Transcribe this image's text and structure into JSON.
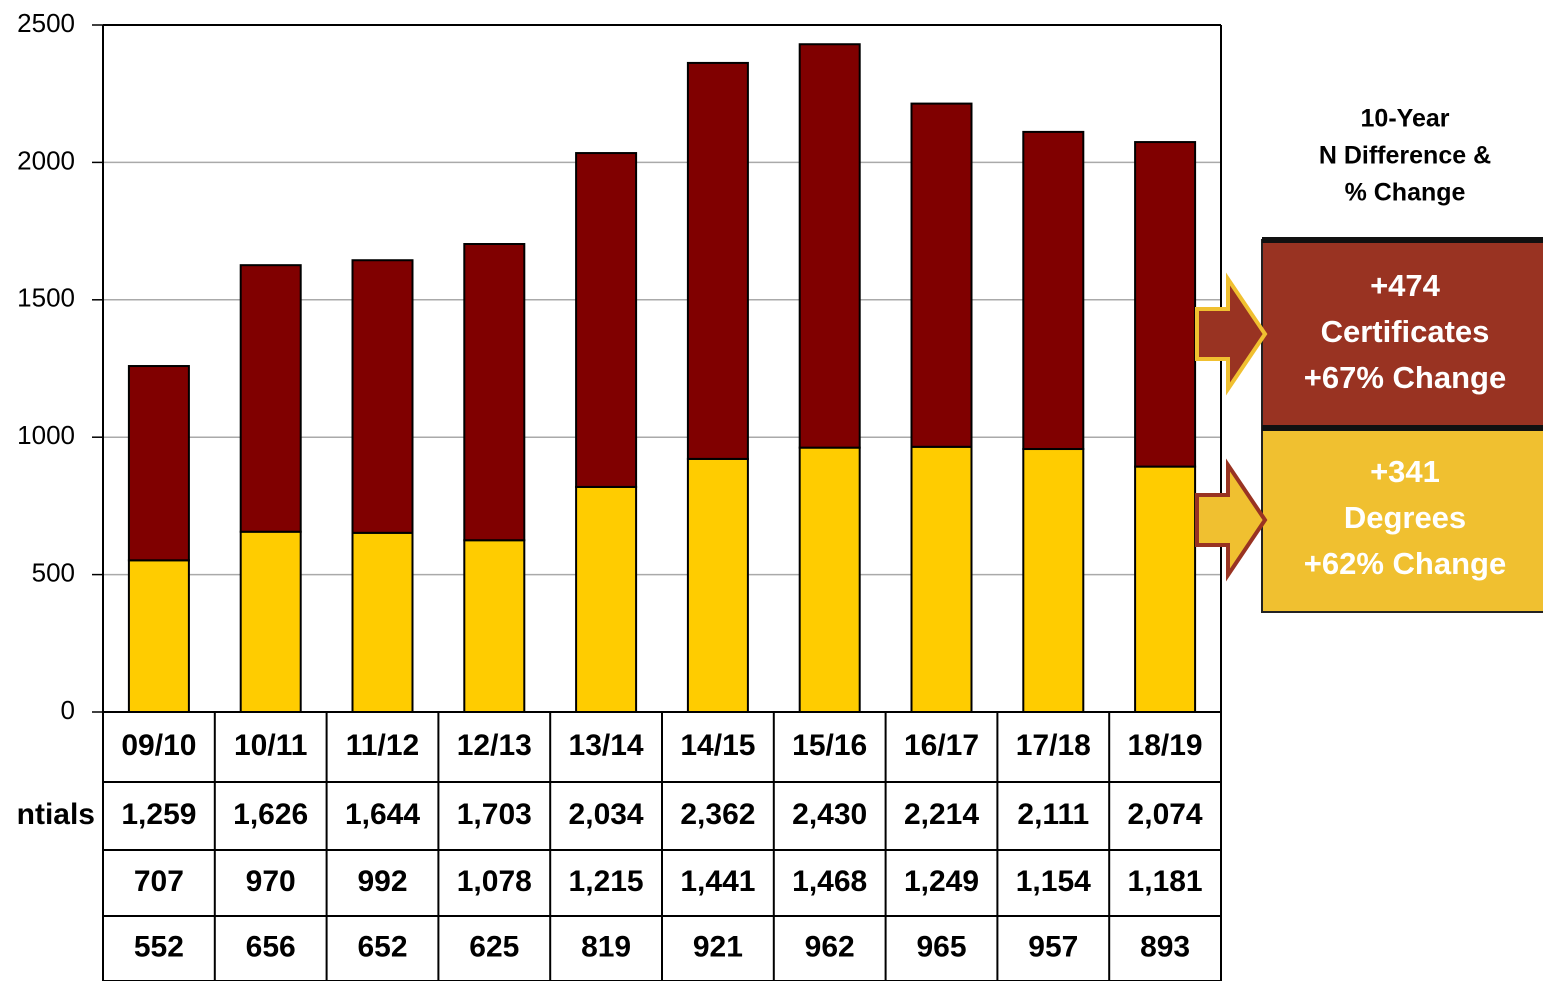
{
  "chart_data": {
    "type": "stacked_bar",
    "categories": [
      "09/10",
      "10/11",
      "11/12",
      "12/13",
      "13/14",
      "14/15",
      "15/16",
      "16/17",
      "17/18",
      "18/19"
    ],
    "series": [
      {
        "name": "Degrees",
        "color": "#ffcc00",
        "values": [
          552,
          656,
          652,
          625,
          819,
          921,
          962,
          965,
          957,
          893
        ]
      },
      {
        "name": "Certificates",
        "color": "#800000",
        "values": [
          707,
          970,
          992,
          1078,
          1215,
          1441,
          1468,
          1249,
          1154,
          1181
        ],
        "value_labels": [
          "707",
          "970",
          "992",
          "1,078",
          "1,215",
          "1,441",
          "1,468",
          "1,249",
          "1,154",
          "1,181"
        ]
      }
    ],
    "totals": {
      "label": "ntials",
      "values": [
        1259,
        1626,
        1644,
        1703,
        2034,
        2362,
        2430,
        2214,
        2111,
        2074
      ],
      "value_labels": [
        "1,259",
        "1,626",
        "1,644",
        "1,703",
        "2,034",
        "2,362",
        "2,430",
        "2,214",
        "2,111",
        "2,074"
      ]
    },
    "ylim": [
      0,
      2500
    ],
    "yticks": [
      0,
      500,
      1000,
      1500,
      2000,
      2500
    ],
    "grid": true,
    "side_title": [
      "10-Year",
      "N Difference &",
      "% Change"
    ],
    "changes": [
      {
        "series": 1,
        "difference": "+474",
        "change": "+67% Change",
        "color": "#993322"
      },
      {
        "series": 0,
        "difference": "+341",
        "change": "+62% Change",
        "color": "#f0c030"
      }
    ]
  }
}
